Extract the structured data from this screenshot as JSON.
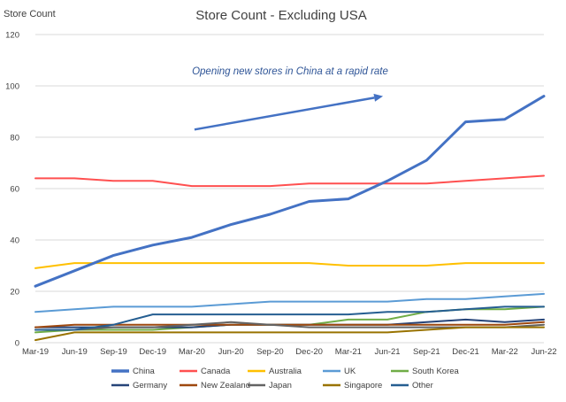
{
  "chart_data": {
    "type": "line",
    "title": "Store Count - Excluding USA",
    "ylabel": "Store Count",
    "xlabel": "",
    "ylim": [
      0,
      120
    ],
    "yticks": [
      0,
      20,
      40,
      60,
      80,
      100,
      120
    ],
    "grid": true,
    "legend_position": "bottom",
    "categories": [
      "Mar-19",
      "Jun-19",
      "Sep-19",
      "Dec-19",
      "Mar-20",
      "Jun-20",
      "Sep-20",
      "Dec-20",
      "Mar-21",
      "Jun-21",
      "Sep-21",
      "Dec-21",
      "Mar-22",
      "Jun-22"
    ],
    "series": [
      {
        "name": "China",
        "color": "#4472C4",
        "width": 3,
        "values": [
          22,
          28,
          34,
          38,
          41,
          46,
          50,
          55,
          56,
          63,
          71,
          86,
          87,
          96
        ]
      },
      {
        "name": "Canada",
        "color": "#FF5050",
        "width": 2,
        "values": [
          64,
          64,
          63,
          63,
          61,
          61,
          61,
          62,
          62,
          62,
          62,
          63,
          64,
          65
        ]
      },
      {
        "name": "Australia",
        "color": "#FFC000",
        "width": 2,
        "values": [
          29,
          31,
          31,
          31,
          31,
          31,
          31,
          31,
          30,
          30,
          30,
          31,
          31,
          31
        ]
      },
      {
        "name": "UK",
        "color": "#5B9BD5",
        "width": 2,
        "values": [
          12,
          13,
          14,
          14,
          14,
          15,
          16,
          16,
          16,
          16,
          17,
          17,
          18,
          19
        ]
      },
      {
        "name": "South Korea",
        "color": "#70AD47",
        "width": 2,
        "values": [
          4,
          5,
          5,
          5,
          6,
          7,
          7,
          7,
          9,
          9,
          12,
          13,
          13,
          14
        ]
      },
      {
        "name": "Germany",
        "color": "#264478",
        "width": 2,
        "values": [
          6,
          6,
          6,
          6,
          6,
          7,
          7,
          7,
          7,
          7,
          8,
          9,
          8,
          9
        ]
      },
      {
        "name": "New Zealand",
        "color": "#9E480E",
        "width": 2,
        "values": [
          6,
          7,
          7,
          7,
          7,
          7,
          7,
          7,
          7,
          7,
          7,
          7,
          7,
          8
        ]
      },
      {
        "name": "Japan",
        "color": "#636363",
        "width": 2,
        "values": [
          5,
          5,
          6,
          6,
          7,
          8,
          7,
          6,
          6,
          6,
          6,
          6,
          6,
          7
        ]
      },
      {
        "name": "Singapore",
        "color": "#997300",
        "width": 2,
        "values": [
          1,
          4,
          4,
          4,
          4,
          4,
          4,
          4,
          4,
          4,
          5,
          6,
          6,
          6
        ]
      },
      {
        "name": "Other",
        "color": "#255E91",
        "width": 2,
        "values": [
          5,
          5,
          7,
          11,
          11,
          11,
          11,
          11,
          11,
          12,
          12,
          13,
          14,
          14
        ]
      }
    ],
    "annotation": {
      "text": "Opening new stores in China at a rapid rate",
      "arrow_from": [
        "Mar-20",
        83
      ],
      "arrow_to": [
        "Jun-21",
        96
      ]
    }
  }
}
